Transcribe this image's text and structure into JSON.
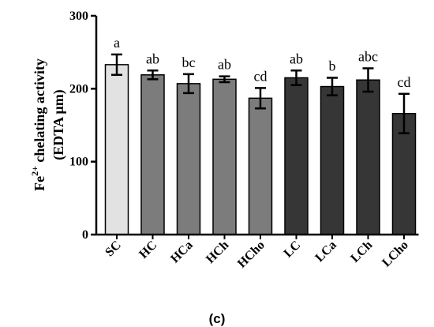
{
  "chart_data": {
    "type": "bar",
    "categories": [
      "SC",
      "HC",
      "HCa",
      "HCh",
      "HCho",
      "LC",
      "LCa",
      "LCh",
      "LCho"
    ],
    "values": [
      233,
      219,
      207,
      213,
      187,
      215,
      203,
      212,
      166
    ],
    "errors": [
      14,
      6,
      13,
      4,
      14,
      10,
      12,
      16,
      27
    ],
    "group_labels": [
      "a",
      "ab",
      "bc",
      "ab",
      "cd",
      "ab",
      "b",
      "abc",
      "cd"
    ],
    "bar_colors": [
      "#e2e2e2",
      "#7c7c7c",
      "#7c7c7c",
      "#7c7c7c",
      "#7c7c7c",
      "#363636",
      "#363636",
      "#363636",
      "#363636"
    ],
    "ylim": [
      0,
      300
    ],
    "yticks": [
      "0",
      "100",
      "200",
      "300"
    ],
    "ylabel_line1": "Fe",
    "ylabel_sup": "2+",
    "ylabel_line1_rest": " chelating activity",
    "ylabel_line2": "(EDTA μm)",
    "caption": "(c)",
    "grid": false
  }
}
